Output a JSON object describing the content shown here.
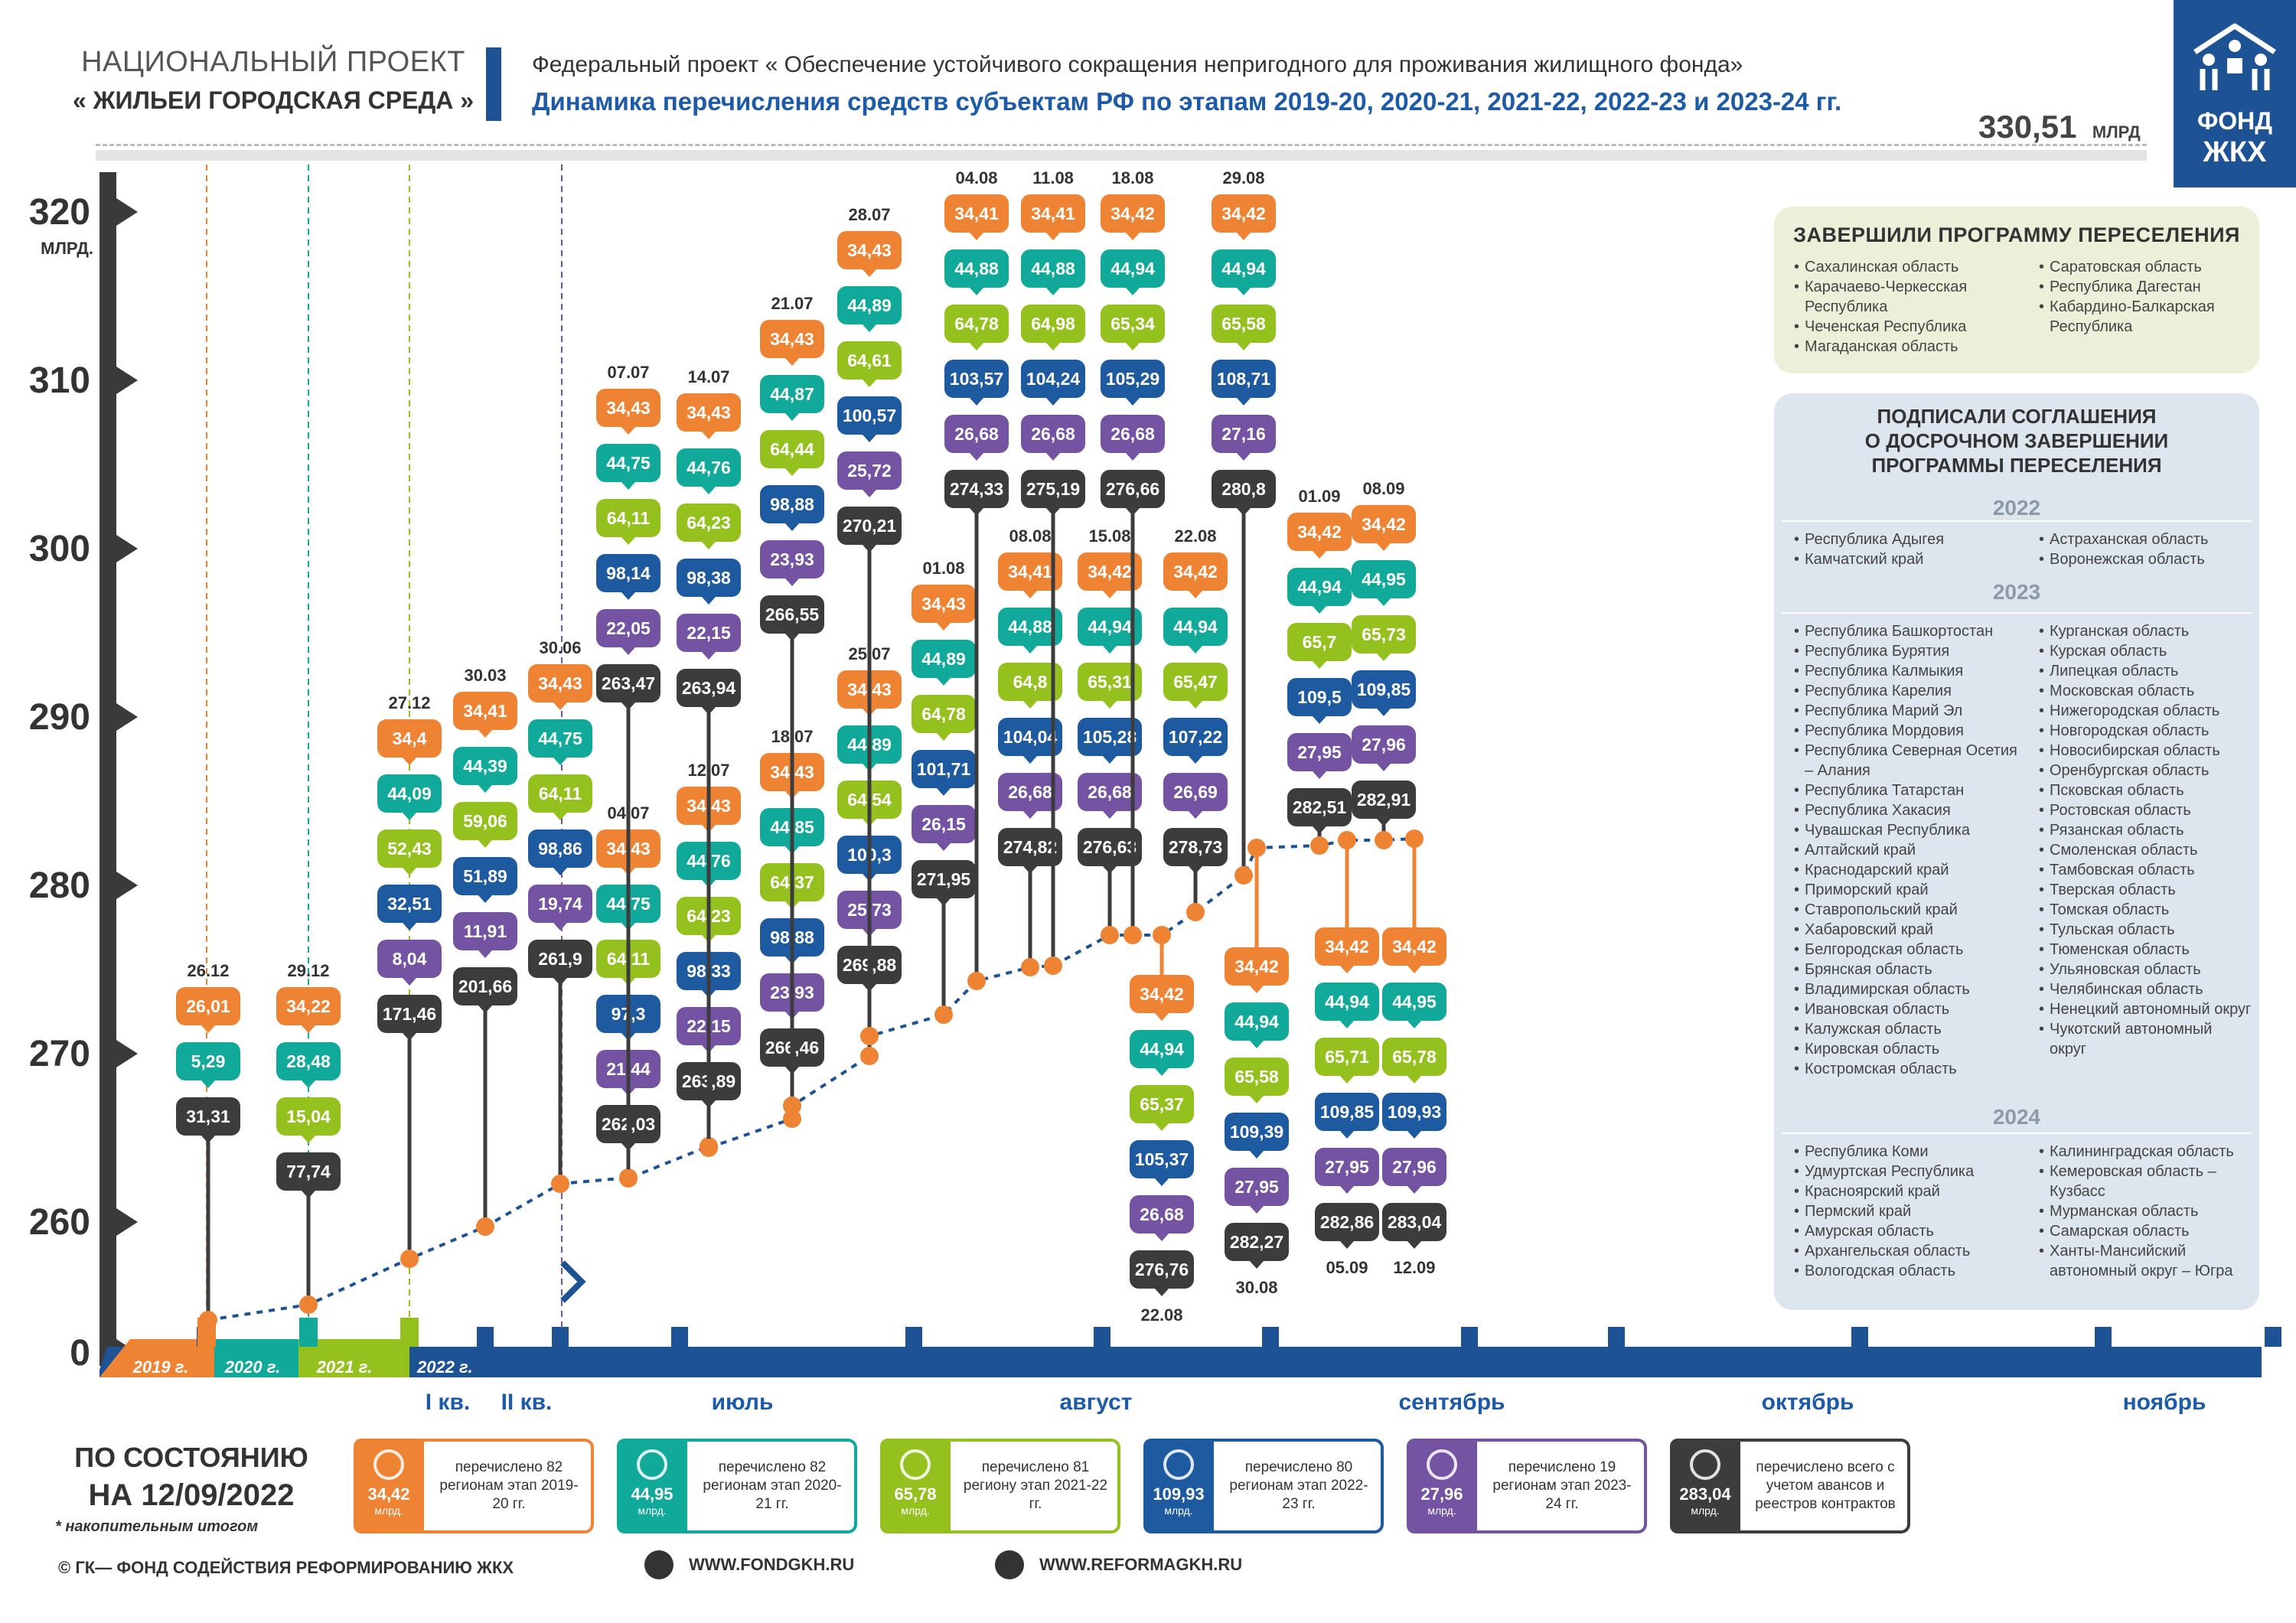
{
  "header": {
    "np_line1": "НАЦИОНАЛЬНЫЙ ПРОЕКТ",
    "np_line2": "« ЖИЛЬЕИ  ГОРОДСКАЯ СРЕДА »",
    "fp_title": "Федеральный проект « Обеспечение устойчивого сокращения непригодного для проживания жилищного фонда»",
    "subtitle": "Динамика перечисления средств субъектам РФ по этапам 2019-20, 2020-21, 2021-22, 2022-23 и 2023-24 гг.",
    "total_value": "330,51",
    "total_unit": "МЛРД",
    "logo_line1": "ФОНД",
    "logo_line2": "ЖКХ"
  },
  "colors": {
    "orange": "#ee8334",
    "teal": "#10a99a",
    "green": "#95c11f",
    "blue": "#1e5aa0",
    "purple": "#7353a2",
    "dark": "#3c3c3c",
    "navy": "#1d5395",
    "panel": "#dde6ee"
  },
  "chart_data": {
    "type": "line",
    "title": "Динамика перечисления средств субъектам РФ",
    "ylabel": "МЛРД.",
    "y_ticks": [
      {
        "label": "0",
        "value": 0
      },
      {
        "label": "260",
        "value": 260
      },
      {
        "label": "270",
        "value": 270
      },
      {
        "label": "280",
        "value": 280
      },
      {
        "label": "290",
        "value": 290
      },
      {
        "label": "300",
        "value": 300
      },
      {
        "label": "310",
        "value": 310
      },
      {
        "label": "320",
        "value": 320
      }
    ],
    "y_unit_label": "МЛРД.",
    "timeline_labels": [
      "2019 г.",
      "2020 г.",
      "2021 г.",
      "2022 г."
    ],
    "x_labels": [
      "I кв.",
      "II кв.",
      "июль",
      "август",
      "сентябрь",
      "октябрь",
      "ноябрь"
    ],
    "points": [
      {
        "date": "26.12",
        "values": [
          "26,01",
          "5,29",
          "31,31"
        ],
        "total": 31.31,
        "label_pos": "above"
      },
      {
        "date": "29.12",
        "values": [
          "34,22",
          "28,48",
          "15,04",
          "77,74"
        ],
        "total": 77.74,
        "label_pos": "above"
      },
      {
        "date": "27.12",
        "values": [
          "34,4",
          "44,09",
          "52,43",
          "32,51",
          "8,04",
          "171,46"
        ],
        "total": 171.46,
        "label_pos": "above"
      },
      {
        "date": "30.03",
        "values": [
          "34,41",
          "44,39",
          "59,06",
          "51,89",
          "11,91",
          "201,66"
        ],
        "total": 201.66,
        "label_pos": "above"
      },
      {
        "date": "30.06",
        "values": [
          "34,43",
          "44,75",
          "64,11",
          "98,86",
          "19,74",
          "261,9"
        ],
        "total": 261.9,
        "label_pos": "above"
      },
      {
        "date": "04.07",
        "values": [
          "34,43",
          "44,75",
          "64,11",
          "97,3",
          "21,44",
          "262,03"
        ],
        "total": 262.03,
        "label_pos": "above"
      },
      {
        "date": "07.07",
        "values": [
          "34,43",
          "44,75",
          "64,11",
          "98,14",
          "22,05",
          "263,47"
        ],
        "total": 263.47,
        "label_pos": "above"
      },
      {
        "date": "12.07",
        "values": [
          "34,43",
          "44,76",
          "64,23",
          "98,33",
          "22,15",
          "263,89"
        ],
        "total": 263.89,
        "label_pos": "above"
      },
      {
        "date": "14.07",
        "values": [
          "34,43",
          "44,76",
          "64,23",
          "98,38",
          "22,15",
          "263,94"
        ],
        "total": 263.94,
        "label_pos": "above"
      },
      {
        "date": "18.07",
        "values": [
          "34,43",
          "44,85",
          "64,37",
          "98,88",
          "23,93",
          "266,46"
        ],
        "total": 266.46,
        "label_pos": "above"
      },
      {
        "date": "21.07",
        "values": [
          "34,43",
          "44,87",
          "64,44",
          "98,88",
          "23,93",
          "266,55"
        ],
        "total": 266.55,
        "label_pos": "above"
      },
      {
        "date": "25.07",
        "values": [
          "34,43",
          "44,89",
          "64,54",
          "100,3",
          "25,73",
          "269,88"
        ],
        "total": 269.88,
        "label_pos": "above"
      },
      {
        "date": "28.07",
        "values": [
          "34,43",
          "44,89",
          "64,61",
          "100,57",
          "25,72",
          "270,21"
        ],
        "total": 270.21,
        "label_pos": "above"
      },
      {
        "date": "01.08",
        "values": [
          "34,43",
          "44,89",
          "64,78",
          "101,71",
          "26,15",
          "271,95"
        ],
        "total": 271.95,
        "label_pos": "above"
      },
      {
        "date": "04.08",
        "values": [
          "34,41",
          "44,88",
          "64,78",
          "103,57",
          "26,68",
          "274,33"
        ],
        "total": 274.33,
        "label_pos": "above"
      },
      {
        "date": "08.08",
        "values": [
          "34,41",
          "44,88",
          "64,8",
          "104,04",
          "26,68",
          "274,82"
        ],
        "total": 274.82,
        "label_pos": "above"
      },
      {
        "date": "11.08",
        "values": [
          "34,41",
          "44,88",
          "64,98",
          "104,24",
          "26,68",
          "275,19"
        ],
        "total": 275.19,
        "label_pos": "above"
      },
      {
        "date": "15.08",
        "values": [
          "34,42",
          "44,94",
          "65,31",
          "105,28",
          "26,68",
          "276,63"
        ],
        "total": 276.63,
        "label_pos": "above"
      },
      {
        "date": "18.08",
        "values": [
          "34,42",
          "44,94",
          "65,34",
          "105,29",
          "26,68",
          "276,66"
        ],
        "total": 276.66,
        "label_pos": "above"
      },
      {
        "date": "22.08",
        "values": [
          "34,42",
          "44,94",
          "65,37",
          "105,37",
          "26,68",
          "276,76"
        ],
        "total": 276.76,
        "label_pos": "below"
      },
      {
        "date": "22.08",
        "values": [
          "34,42",
          "44,94",
          "65,47",
          "107,22",
          "26,69",
          "278,73"
        ],
        "total": 278.73,
        "label_pos": "above"
      },
      {
        "date": "29.08",
        "values": [
          "34,42",
          "44,94",
          "65,58",
          "108,71",
          "27,16",
          "280,8"
        ],
        "total": 280.8,
        "label_pos": "above"
      },
      {
        "date": "30.08",
        "values": [
          "34,42",
          "44,94",
          "65,58",
          "109,39",
          "27,95",
          "282,27"
        ],
        "total": 282.27,
        "label_pos": "below"
      },
      {
        "date": "01.09",
        "values": [
          "34,42",
          "44,94",
          "65,7",
          "109,5",
          "27,95",
          "282,51"
        ],
        "total": 282.51,
        "label_pos": "above"
      },
      {
        "date": "05.09",
        "values": [
          "34,42",
          "44,94",
          "65,71",
          "109,85",
          "27,95",
          "282,86"
        ],
        "total": 282.86,
        "label_pos": "below"
      },
      {
        "date": "08.09",
        "values": [
          "34,42",
          "44,95",
          "65,73",
          "109,85",
          "27,96",
          "282,91"
        ],
        "total": 282.91,
        "label_pos": "above"
      },
      {
        "date": "12.09",
        "values": [
          "34,42",
          "44,95",
          "65,78",
          "109,93",
          "27,96",
          "283,04"
        ],
        "total": 283.04,
        "label_pos": "below"
      }
    ]
  },
  "completed": {
    "title": "ЗАВЕРШИЛИ ПРОГРАММУ ПЕРЕСЕЛЕНИЯ",
    "col1": [
      "Сахалинская область",
      "Карачаево-Черкесская Республика",
      "Чеченская Республика",
      "Магаданская область"
    ],
    "col2": [
      "Саратовская область",
      "Республика Дагестан",
      "Кабардино-Балкарская Республика"
    ]
  },
  "signed": {
    "title_l1": "ПОДПИСАЛИ СОГЛАШЕНИЯ",
    "title_l2": "О ДОСРОЧНОМ ЗАВЕРШЕНИИ",
    "title_l3": "ПРОГРАММЫ ПЕРЕСЕЛЕНИЯ",
    "y2022": "2022",
    "y2022_col1": [
      "Республика Адыгея",
      "Камчатский край"
    ],
    "y2022_col2": [
      "Астраханская область",
      "Воронежская область"
    ],
    "y2023": "2023",
    "y2023_col1": [
      "Республика Башкортостан",
      "Республика Бурятия",
      "Республика Калмыкия",
      "Республика Карелия",
      "Республика Марий Эл",
      "Республика Мордовия",
      "Республика Северная Осетия – Алания",
      "Республика Татарстан",
      "Республика Хакасия",
      "Чувашская Республика",
      "Алтайский край",
      "Краснодарский край",
      "Приморский край",
      "Ставропольский край",
      "Хабаровский край",
      "Белгородская область",
      "Брянская область",
      "Владимирская область",
      "Ивановская область",
      "Калужская область",
      "Кировская область",
      "Костромская область"
    ],
    "y2023_col2": [
      "Курганская область",
      "Курская область",
      "Липецкая область",
      "Московская область",
      "Нижегородская область",
      "Новгородская область",
      "Новосибирская область",
      "Оренбургская область",
      "Псковская область",
      "Ростовская область",
      "Рязанская область",
      "Смоленская область",
      "Тамбовская область",
      "Тверская область",
      "Томская область",
      "Тульская область",
      "Тюменская область",
      "Ульяновская область",
      "Челябинская область",
      "Ненецкий автономный округ",
      "Чукотский автономный округ"
    ],
    "y2024": "2024",
    "y2024_col1": [
      "Республика Коми",
      "Удмуртская Республика",
      "Красноярский край",
      "Пермский край",
      "Амурская область",
      "Архангельская область",
      "Вологодская область"
    ],
    "y2024_col2": [
      "Калининградская область",
      "Кемеровская область – Кузбасс",
      "Мурманская область",
      "Самарская область",
      "Ханты-Мансийский автономный округ – Югра"
    ]
  },
  "status": {
    "line1": "ПО СОСТОЯНИЮ",
    "line2": "НА  12/09/2022",
    "note": "* накопительным итогом"
  },
  "legend": [
    {
      "value": "34,42",
      "unit": "млрд.",
      "text": "перечислено 82 регионам этап 2019-20 гг.",
      "color": "#ee8334"
    },
    {
      "value": "44,95",
      "unit": "млрд.",
      "text": "перечислено 82 регионам этап 2020-21 гг.",
      "color": "#10a99a"
    },
    {
      "value": "65,78",
      "unit": "млрд.",
      "text": "перечислено 81 региону этап 2021-22 гг.",
      "color": "#95c11f"
    },
    {
      "value": "109,93",
      "unit": "млрд.",
      "text": "перечислено 80 регионам этап 2022-23 гг.",
      "color": "#1e5aa0"
    },
    {
      "value": "27,96",
      "unit": "млрд.",
      "text": "перечислено 19 регионам этап 2023-24 гг.",
      "color": "#7353a2"
    },
    {
      "value": "283,04",
      "unit": "млрд.",
      "text": "перечислено всего с учетом авансов и реестров контрактов",
      "color": "#3c3c3c"
    }
  ],
  "footer": {
    "copyright": "© ГК— ФОНД СОДЕЙСТВИЯ РЕФОРМИРОВАНИЮ ЖКХ",
    "site1": "WWW.FONDGKH.RU",
    "site2": "WWW.REFORMAGKH.RU"
  }
}
